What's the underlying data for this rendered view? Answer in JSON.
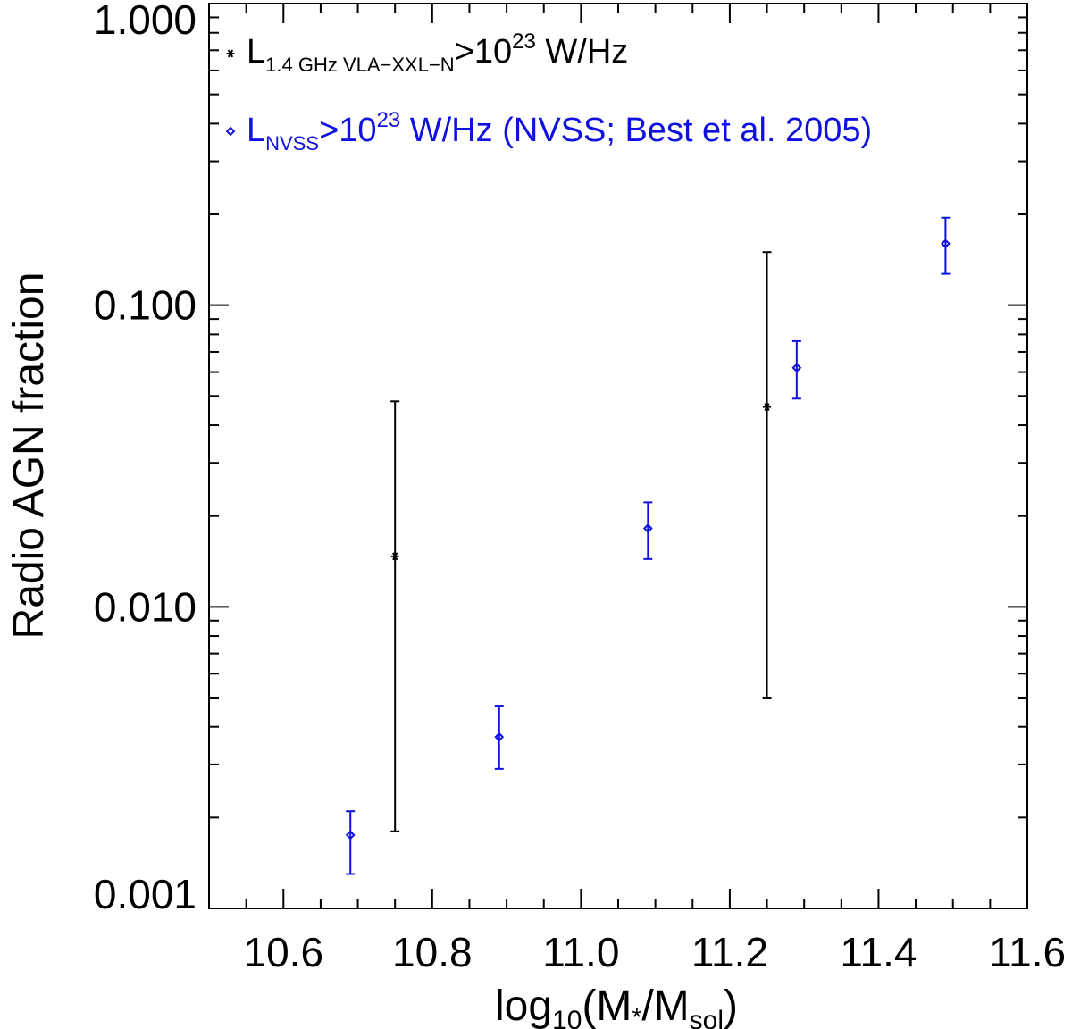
{
  "chart_data": {
    "type": "scatter",
    "xlabel": {
      "prefix": "log",
      "sub": "10",
      "open": "(M",
      "star": "*",
      "mid": "/M",
      "sub2": "sol",
      "close": ")"
    },
    "ylabel": "Radio AGN fraction",
    "xlim": [
      10.5,
      11.6
    ],
    "ylim": [
      0.001,
      1.0
    ],
    "y_scale": "log",
    "x_ticks": [
      "10.6",
      "10.8",
      "11.0",
      "11.2",
      "11.4",
      "11.6"
    ],
    "x_tick_values": [
      10.6,
      10.8,
      11.0,
      11.2,
      11.4,
      11.6
    ],
    "y_ticks": [
      "0.001",
      "0.010",
      "0.100",
      "1.000"
    ],
    "y_tick_values": [
      0.001,
      0.01,
      0.1,
      1.0
    ],
    "legend_position": "top-left",
    "series": [
      {
        "name": "L1.4 GHz VLA-XXL-N>10^23 W/Hz",
        "legend": {
          "main": "L",
          "sub": "1.4 GHz VLA−XXL−N",
          "after": ">10",
          "sup": "23",
          "tail": " W/Hz"
        },
        "color": "#000000",
        "marker": "asterisk",
        "points": [
          {
            "x": 10.75,
            "y": 0.0147,
            "y_low": 0.0018,
            "y_high": 0.048
          },
          {
            "x": 11.25,
            "y": 0.046,
            "y_low": 0.005,
            "y_high": 0.15
          }
        ]
      },
      {
        "name": "LNVSS>10^23 W/Hz (NVSS; Best et al. 2005)",
        "legend": {
          "main": "L",
          "sub": "NVSS",
          "after": ">10",
          "sup": "23",
          "tail": " W/Hz (NVSS; Best et al. 2005)"
        },
        "color": "#1010e0",
        "marker": "diamond",
        "points": [
          {
            "x": 10.69,
            "y": 0.00175,
            "y_low": 0.0013,
            "y_high": 0.0021
          },
          {
            "x": 10.89,
            "y": 0.0037,
            "y_low": 0.0029,
            "y_high": 0.0047
          },
          {
            "x": 11.09,
            "y": 0.0182,
            "y_low": 0.0144,
            "y_high": 0.0222
          },
          {
            "x": 11.29,
            "y": 0.062,
            "y_low": 0.049,
            "y_high": 0.076
          },
          {
            "x": 11.49,
            "y": 0.16,
            "y_low": 0.127,
            "y_high": 0.195
          }
        ]
      }
    ]
  }
}
